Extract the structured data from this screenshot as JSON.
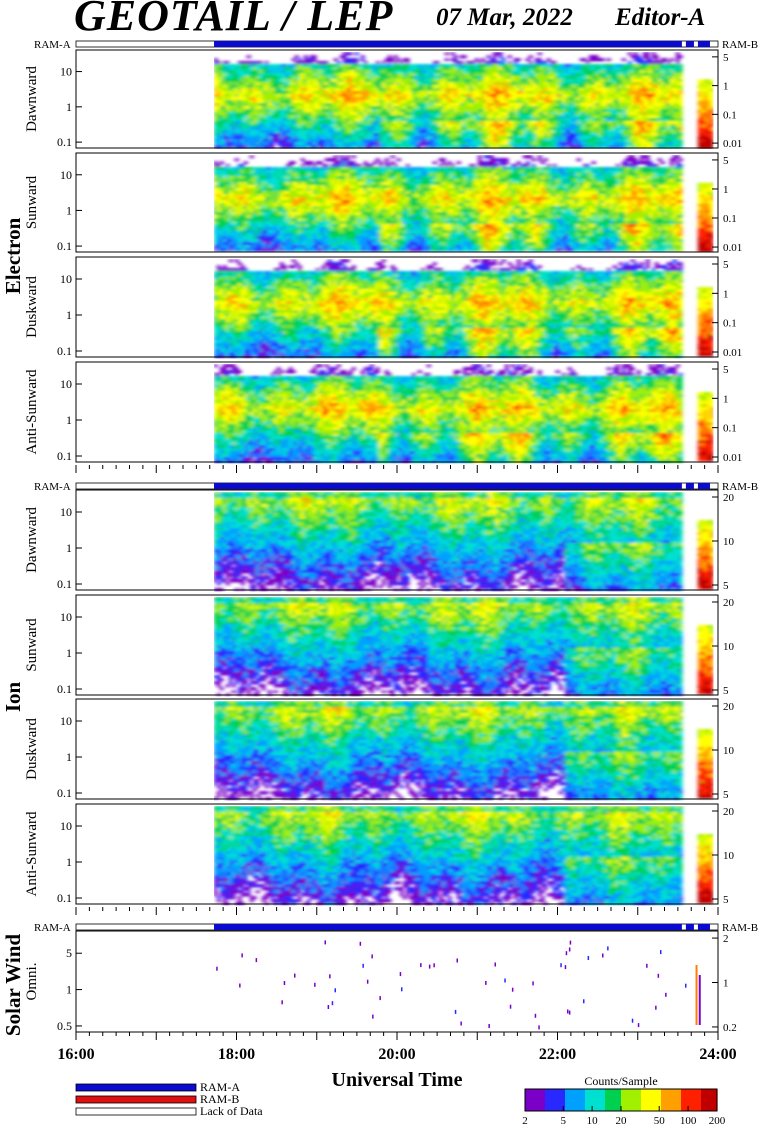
{
  "header": {
    "title": "GEOTAIL / LEP",
    "date": "07 Mar, 2022",
    "editor": "Editor-A"
  },
  "ram_labels": {
    "left": "RAM-A",
    "right": "RAM-B"
  },
  "colors": {
    "ram_a": "#0a0ad0",
    "ram_b": "#e01010",
    "lack": "#ffffff",
    "frame": "#000000"
  },
  "chart_data": {
    "type": "heatmap",
    "xlabel": "Universal Time",
    "xlim_hours": [
      16,
      24
    ],
    "x_tick_labels": [
      "16:00",
      "18:00",
      "20:00",
      "22:00",
      "24:00"
    ],
    "data_start_hour": 17.72,
    "groups": [
      {
        "name": "Electron",
        "right_axis_type": "log",
        "panels": [
          {
            "name": "Dawnward",
            "left_ticks": [
              "10",
              "1",
              "0.1"
            ],
            "right_ticks": [
              "5",
              "1",
              "0.1",
              "0.01"
            ]
          },
          {
            "name": "Sunward",
            "left_ticks": [
              "10",
              "1",
              "0.1"
            ],
            "right_ticks": [
              "5",
              "1",
              "0.1",
              "0.01"
            ]
          },
          {
            "name": "Duskward",
            "left_ticks": [
              "10",
              "1",
              "0.1"
            ],
            "right_ticks": [
              "5",
              "1",
              "0.1",
              "0.01"
            ]
          },
          {
            "name": "Anti-Sunward",
            "left_ticks": [
              "10",
              "1",
              "0.1"
            ],
            "right_ticks": [
              "5",
              "1",
              "0.1",
              "0.01"
            ]
          }
        ]
      },
      {
        "name": "Ion",
        "right_axis_type": "linear",
        "panels": [
          {
            "name": "Dawnward",
            "left_ticks": [
              "10",
              "1",
              "0.1"
            ],
            "right_ticks": [
              "20",
              "10",
              "5"
            ]
          },
          {
            "name": "Sunward",
            "left_ticks": [
              "10",
              "1",
              "0.1"
            ],
            "right_ticks": [
              "20",
              "10",
              "5"
            ]
          },
          {
            "name": "Duskward",
            "left_ticks": [
              "10",
              "1",
              "0.1"
            ],
            "right_ticks": [
              "20",
              "10",
              "5"
            ]
          },
          {
            "name": "Anti-Sunward",
            "left_ticks": [
              "10",
              "1",
              "0.1"
            ],
            "right_ticks": [
              "20",
              "10",
              "5"
            ]
          }
        ]
      },
      {
        "name": "Solar Wind",
        "panels": [
          {
            "name": "Omni.",
            "left_ticks": [
              "5",
              "1",
              "0.5"
            ],
            "right_ticks": [
              "2",
              "1",
              "0.2"
            ]
          }
        ]
      }
    ],
    "legend": {
      "items": [
        "RAM-A",
        "RAM-B",
        "Lack of Data"
      ]
    },
    "colorbar": {
      "title": "Counts/Sample",
      "scale": "log",
      "range": [
        2,
        200
      ],
      "ticks": [
        "2",
        "5",
        "10",
        "20",
        "50",
        "100",
        "200"
      ],
      "colors": [
        "#7a00c8",
        "#2828ff",
        "#00a0ff",
        "#00e0d0",
        "#00d050",
        "#a0f000",
        "#ffff00",
        "#ffa000",
        "#ff2000",
        "#c00000"
      ]
    }
  }
}
